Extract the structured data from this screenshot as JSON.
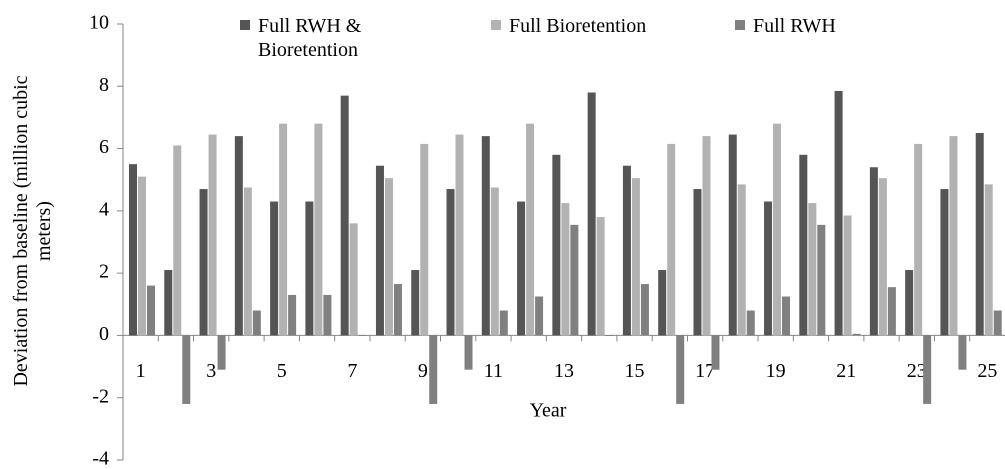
{
  "chart_data": {
    "type": "bar",
    "x_label": "Year",
    "y_label": "Deviation from baseline (million cubic meters)",
    "categories": [
      "1",
      null,
      "3",
      null,
      "5",
      null,
      "7",
      null,
      "9",
      null,
      "11",
      null,
      "13",
      null,
      "15",
      null,
      "17",
      null,
      "19",
      null,
      "21",
      null,
      "23",
      null,
      "25"
    ],
    "series": [
      {
        "name": "Full RWH & Bioretention",
        "color": "#555555",
        "values": [
          5.5,
          2.1,
          4.7,
          6.4,
          4.3,
          4.3,
          7.7,
          5.45,
          2.1,
          4.7,
          6.4,
          4.3,
          5.8,
          7.8,
          5.45,
          2.1,
          4.7,
          6.45,
          4.3,
          5.8,
          7.85,
          5.4,
          2.1,
          4.7,
          6.5
        ]
      },
      {
        "name": "Full Bioretention",
        "color": "#b2b2b2",
        "values": [
          5.1,
          6.1,
          6.45,
          4.75,
          6.8,
          6.8,
          3.6,
          5.05,
          6.15,
          6.45,
          4.75,
          6.8,
          4.25,
          3.8,
          5.05,
          6.15,
          6.4,
          4.85,
          6.8,
          4.25,
          3.85,
          5.05,
          6.15,
          6.4,
          4.85
        ]
      },
      {
        "name": "Full RWH",
        "color": "#808080",
        "values": [
          1.6,
          -2.2,
          -1.1,
          0.8,
          1.3,
          1.3,
          0,
          1.65,
          -2.2,
          -1.1,
          0.8,
          1.25,
          3.55,
          0,
          1.65,
          -2.2,
          -1.1,
          0.8,
          1.25,
          3.55,
          0.05,
          1.55,
          -2.2,
          -1.1,
          0.8
        ]
      }
    ],
    "ylim": [
      -4,
      10
    ],
    "yticks": [
      -4,
      -2,
      0,
      2,
      4,
      6,
      8,
      10
    ],
    "legend": "top"
  }
}
